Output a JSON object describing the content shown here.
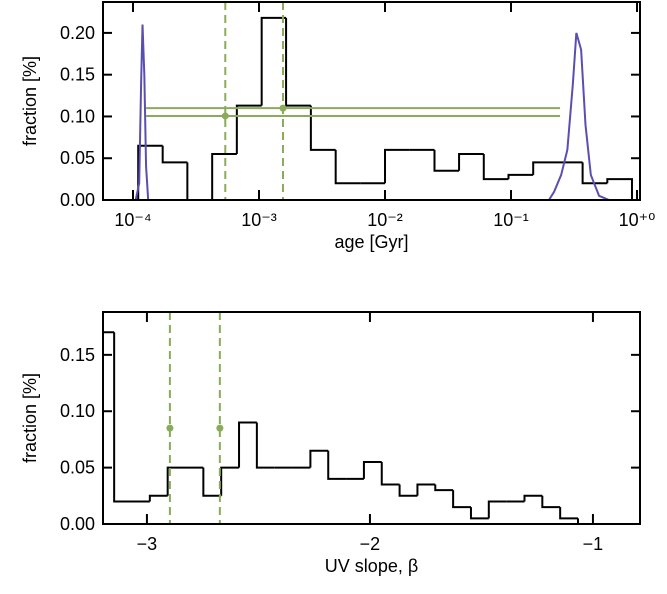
{
  "chart_data": [
    {
      "type": "histogram",
      "xlabel": "age [Gyr]",
      "ylabel": "fraction [%]",
      "xscale": "log",
      "xlim": [
        5.78e-05,
        1.056
      ],
      "ylim": [
        0,
        0.237
      ],
      "xticks": [
        {
          "value": 0.0001,
          "label": "10⁻⁴"
        },
        {
          "value": 0.001,
          "label": "10⁻³"
        },
        {
          "value": 0.01,
          "label": "10⁻²"
        },
        {
          "value": 0.1,
          "label": "10⁻¹"
        },
        {
          "value": 1,
          "label": "10⁺⁰"
        }
      ],
      "yticks": [
        {
          "value": 0,
          "label": "0.00"
        },
        {
          "value": 0.05,
          "label": "0.05"
        },
        {
          "value": 0.1,
          "label": "0.10"
        },
        {
          "value": 0.15,
          "label": "0.15"
        },
        {
          "value": 0.2,
          "label": "0.20"
        }
      ],
      "series": [
        {
          "type": "step",
          "color": "#000000",
          "bins": [
            0.00011,
            0.000172,
            0.00027,
            0.000425,
            0.000667,
            0.00105,
            0.00164,
            0.00258,
            0.00406,
            0.00637,
            0.01,
            0.0157,
            0.0247,
            0.0387,
            0.0608,
            0.0955,
            0.15,
            0.236,
            0.37,
            0.581,
            0.912
          ],
          "values": [
            0.065,
            0.045,
            0,
            0.055,
            0.113,
            0.218,
            0.113,
            0.06,
            0.02,
            0.02,
            0.06,
            0.06,
            0.035,
            0.055,
            0.025,
            0.03,
            0.045,
            0.045,
            0.02,
            0.025
          ]
        },
        {
          "type": "line",
          "color": "#5a4fb0",
          "x": [
            0.000105,
            0.000112,
            0.000116,
            0.000119,
            0.000123,
            0.000127,
            0.000132,
            0.2,
            0.22,
            0.25,
            0.28,
            0.31,
            0.33,
            0.36,
            0.39,
            0.43,
            0.5,
            0.6
          ],
          "values": [
            0,
            0.02,
            0.14,
            0.21,
            0.15,
            0.04,
            0,
            0,
            0.01,
            0.03,
            0.06,
            0.14,
            0.2,
            0.18,
            0.09,
            0.03,
            0.005,
            0
          ]
        }
      ],
      "hlines": [
        {
          "y": 0.11,
          "xmin": 0.000127,
          "xmax": 0.245
        },
        {
          "y": 0.1006,
          "xmin": 0.000127,
          "xmax": 0.245
        }
      ],
      "markers": [
        {
          "x": 0.00054,
          "y": 0.1006
        },
        {
          "x": 0.00155,
          "y": 0.11
        }
      ],
      "marker_color": "#8aac5a"
    },
    {
      "type": "histogram",
      "xlabel": "UV slope, β",
      "ylabel": "fraction [%]",
      "xscale": "linear",
      "xlim": [
        -3.197,
        -0.789
      ],
      "ylim": [
        0,
        0.188
      ],
      "xticks": [
        {
          "value": -3,
          "label": "−3"
        },
        {
          "value": -2,
          "label": "−2"
        },
        {
          "value": -1,
          "label": "−1"
        }
      ],
      "yticks": [
        {
          "value": 0,
          "label": "0.00"
        },
        {
          "value": 0.05,
          "label": "0.05"
        },
        {
          "value": 0.1,
          "label": "0.10"
        },
        {
          "value": 0.15,
          "label": "0.15"
        }
      ],
      "series": [
        {
          "type": "step",
          "color": "#000000",
          "bins": [
            -3.197,
            -3.147,
            -3.067,
            -2.987,
            -2.907,
            -2.827,
            -2.747,
            -2.667,
            -2.587,
            -2.507,
            -2.427,
            -2.347,
            -2.267,
            -2.187,
            -2.107,
            -2.027,
            -1.947,
            -1.867,
            -1.787,
            -1.707,
            -1.627,
            -1.547,
            -1.467,
            -1.387,
            -1.307,
            -1.227,
            -1.147,
            -1.067,
            -0.987,
            -0.907
          ],
          "values": [
            0.17,
            0.02,
            0.02,
            0.025,
            0.05,
            0.05,
            0.025,
            0.05,
            0.09,
            0.05,
            0.05,
            0.05,
            0.065,
            0.04,
            0.04,
            0.055,
            0.035,
            0.025,
            0.035,
            0.03,
            0.015,
            0.005,
            0.02,
            0.02,
            0.025,
            0.015,
            0.005,
            0,
            0
          ]
        }
      ],
      "hlines": [],
      "markers": [
        {
          "x": -2.897,
          "y": 0.085
        },
        {
          "x": -2.673,
          "y": 0.085
        }
      ],
      "marker_color": "#8aac5a"
    }
  ]
}
